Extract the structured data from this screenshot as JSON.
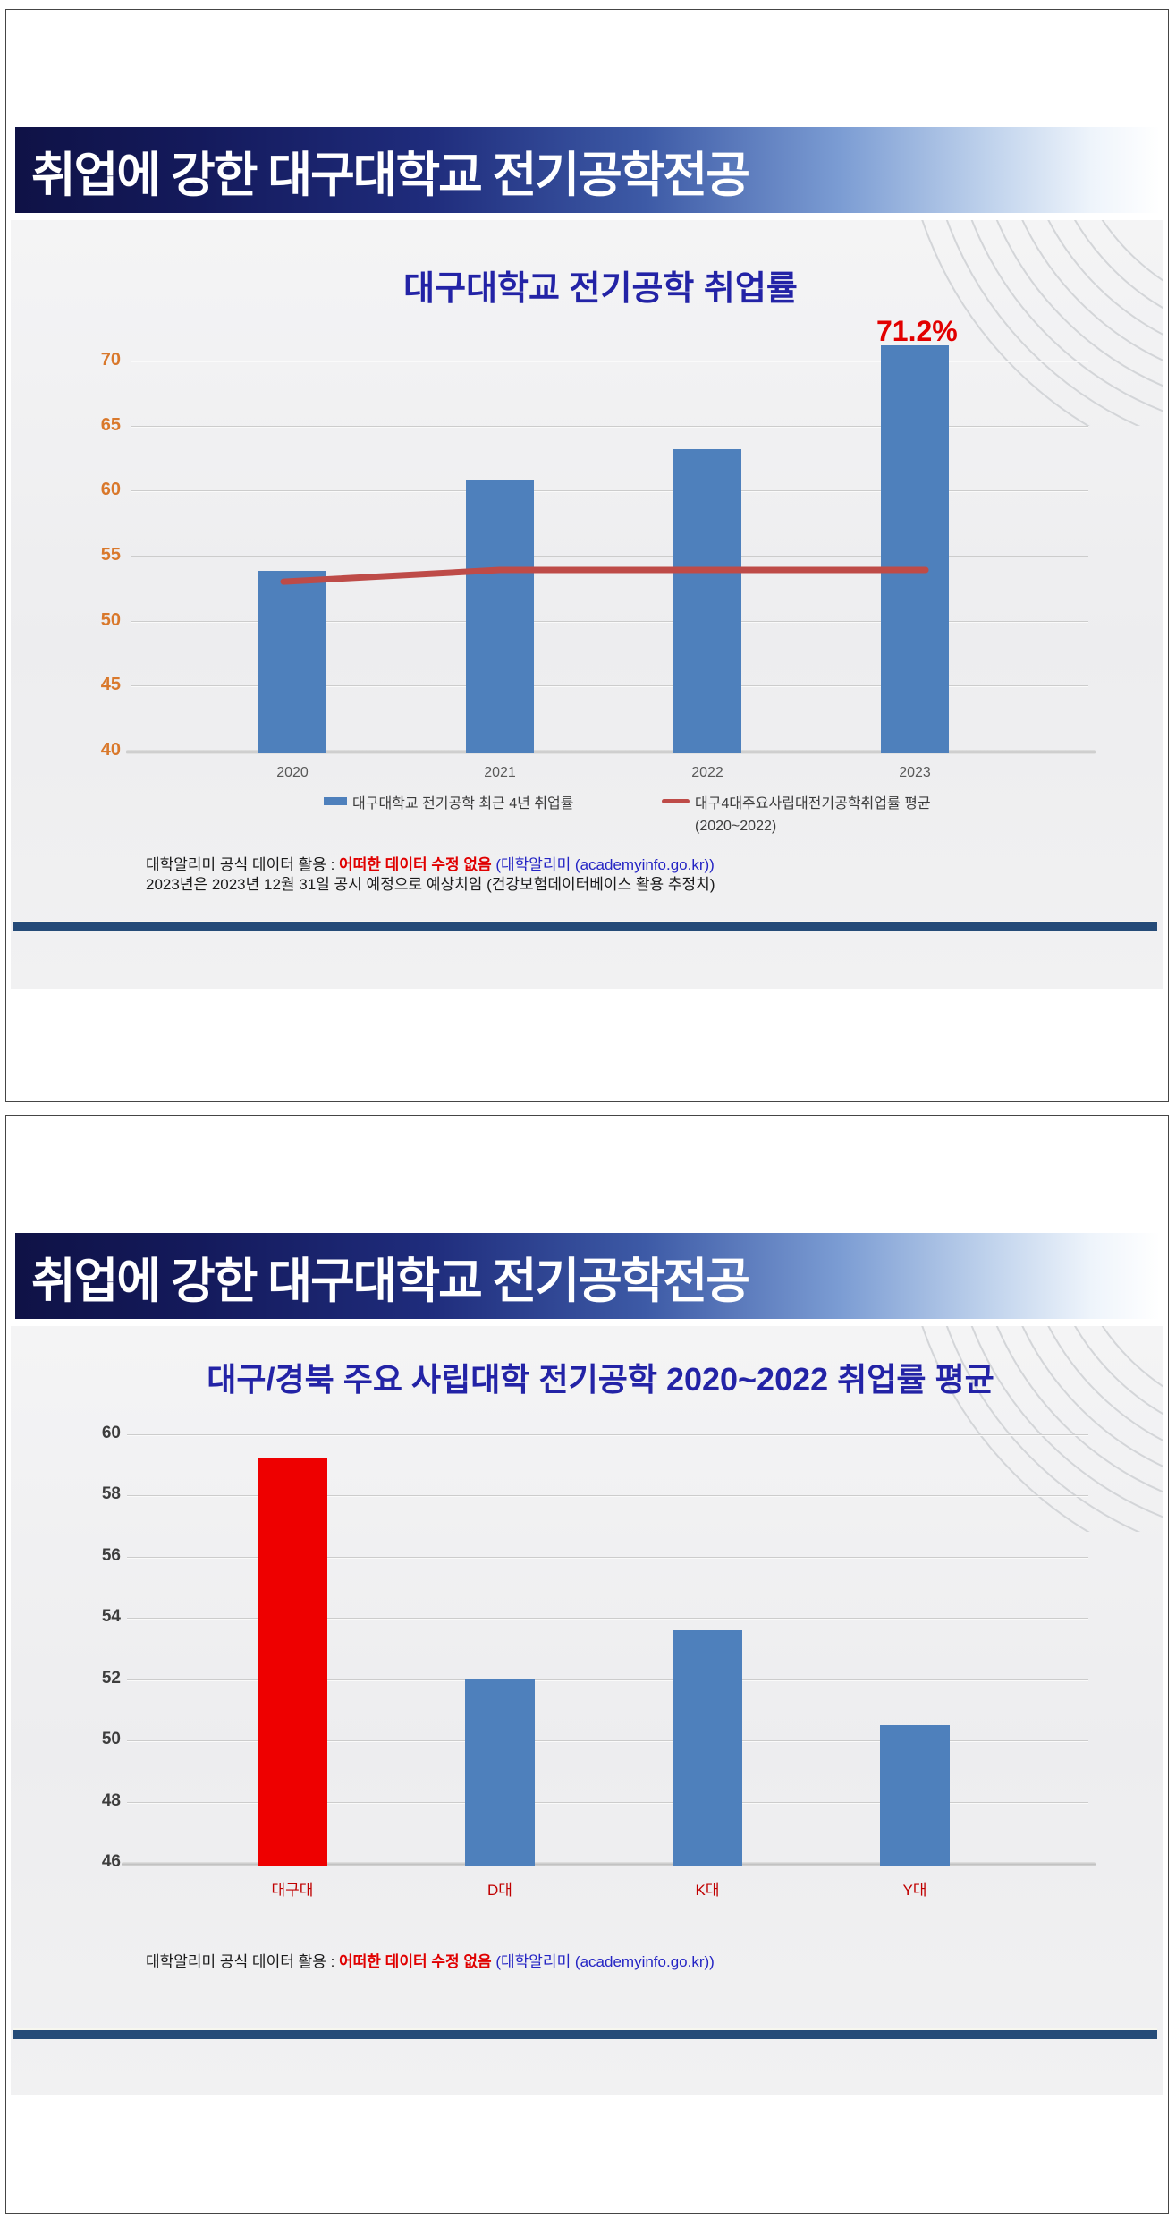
{
  "slide1": {
    "header_title": "취업에 강한 대구대학교 전기공학전공",
    "footnote": {
      "line1_prefix": "대학알리미 공식 데이터 활용 : ",
      "line1_red": "어떠한 데이터 수정 없음",
      "line1_link": "(대학알리미 (academyinfo.go.kr))",
      "line2": "2023년은 2023년 12월 31일 공시 예정으로 예상치임 (건강보험데이터베이스 활용 추정치)"
    },
    "chart_data": {
      "type": "bar",
      "title": "대구대학교 전기공학 취업률",
      "categories": [
        "2020",
        "2021",
        "2022",
        "2023"
      ],
      "series": [
        {
          "name": "대구대학교 전기공학 최근 4년 취업률",
          "type": "bar",
          "values": [
            53.8,
            60.8,
            63.2,
            71.2
          ],
          "color": "#4e80bc"
        },
        {
          "name": "대구4대주요사립대전기공학취업률 평균",
          "subname": "(2020~2022)",
          "type": "line",
          "values": [
            53.0,
            53.9,
            53.9,
            53.9
          ],
          "color": "#be4b48"
        }
      ],
      "annotation": "71.2%",
      "annotation_color": "#e20000",
      "xlabel": "",
      "ylabel": "",
      "ylim": [
        40,
        70
      ],
      "ytick_step": 5,
      "grid": true,
      "legend_position": "bottom"
    }
  },
  "slide2": {
    "header_title": "취업에 강한 대구대학교 전기공학전공",
    "footnote": {
      "line1_prefix": "대학알리미 공식 데이터 활용 : ",
      "line1_red": "어떠한 데이터 수정 없음",
      "line1_link": "(대학알리미 (academyinfo.go.kr))"
    },
    "chart_data": {
      "type": "bar",
      "title": "대구/경북 주요 사립대학  전기공학 2020~2022 취업률 평균",
      "categories": [
        "대구대",
        "D대",
        "K대",
        "Y대"
      ],
      "values": [
        59.2,
        52.0,
        53.6,
        50.5
      ],
      "bar_colors": [
        "#ee0000",
        "#4e80bc",
        "#4e80bc",
        "#4e80bc"
      ],
      "highlight_category": "대구대",
      "xlabel": "",
      "ylabel": "",
      "ylim": [
        46,
        60
      ],
      "ytick_step": 2,
      "grid": true,
      "legend_position": "none"
    }
  },
  "colors": {
    "bar_blue": "#4e80bc",
    "bar_red": "#ee0000",
    "line_red": "#be4b48",
    "title_navy_gradient_start": "#0f1246",
    "chart_title_blue": "#2323a6",
    "ytick_orange": "#d9782b",
    "xlabel_red": "#c00000",
    "navy_rule": "#254b78"
  }
}
